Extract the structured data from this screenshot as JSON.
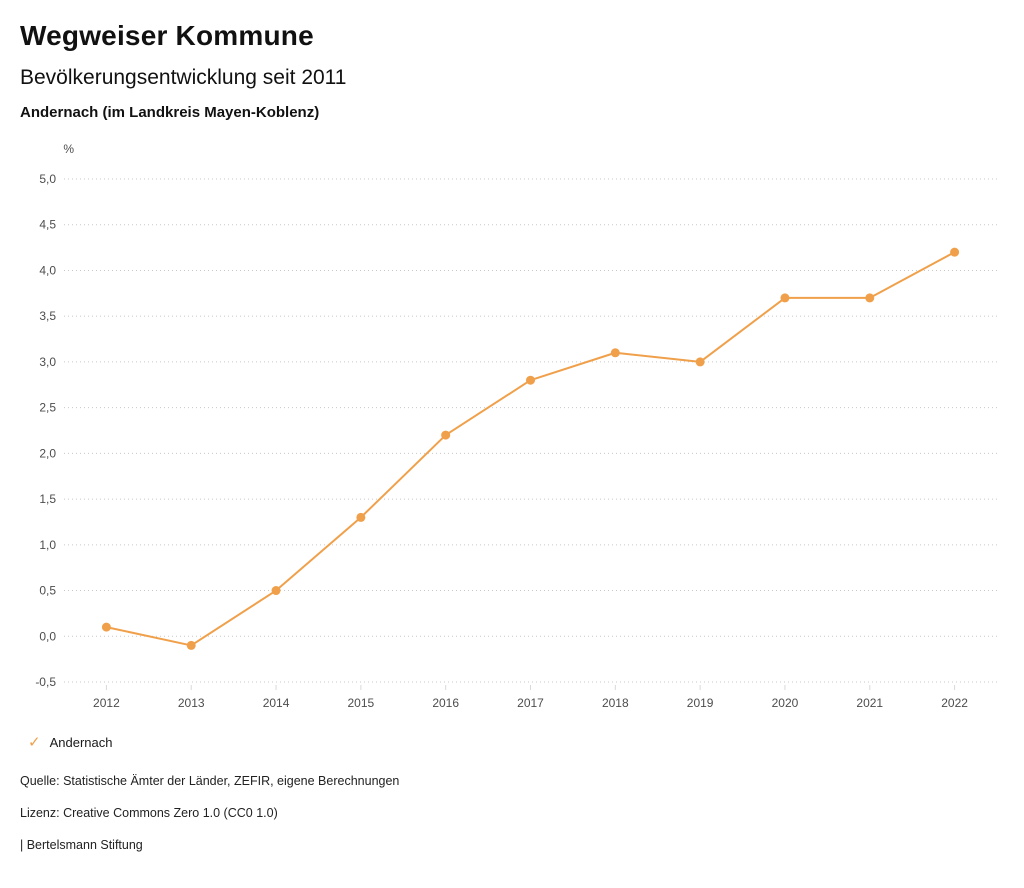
{
  "header": {
    "title": "Wegweiser Kommune",
    "subtitle": "Bevölkerungsentwicklung seit 2011",
    "location": "Andernach (im Landkreis Mayen-Koblenz)"
  },
  "chart_data": {
    "type": "line",
    "title": "Bevölkerungsentwicklung seit 2011 — Andernach",
    "unit_label": "%",
    "xlabel": "",
    "ylabel": "%",
    "categories": [
      "2012",
      "2013",
      "2014",
      "2015",
      "2016",
      "2017",
      "2018",
      "2019",
      "2020",
      "2021",
      "2022"
    ],
    "series": [
      {
        "name": "Andernach",
        "color": "#F0A04A",
        "values": [
          0.1,
          -0.1,
          0.5,
          1.3,
          2.2,
          2.8,
          3.1,
          3.0,
          3.7,
          3.7,
          4.2
        ]
      }
    ],
    "ylim": [
      -0.5,
      5.0
    ],
    "ytick_step": 0.5,
    "ytick_labels_top_to_bottom": [
      "5,0",
      "4,5",
      "4,0",
      "3,5",
      "3,0",
      "2,5",
      "2,0",
      "1,5",
      "1,0",
      "0,5",
      "0,0",
      "-0,5"
    ],
    "grid": "dotted-horizontal",
    "grid_color": "#c8c8c8",
    "tick_label_color": "#4d4d4d",
    "legend_position": "bottom-left"
  },
  "legend": {
    "check_glyph": "✓"
  },
  "footer": {
    "source": "Quelle: Statistische Ämter der Länder, ZEFIR, eigene Berechnungen",
    "license": "Lizenz: Creative Commons Zero 1.0 (CC0 1.0)",
    "attribution": "| Bertelsmann Stiftung"
  }
}
